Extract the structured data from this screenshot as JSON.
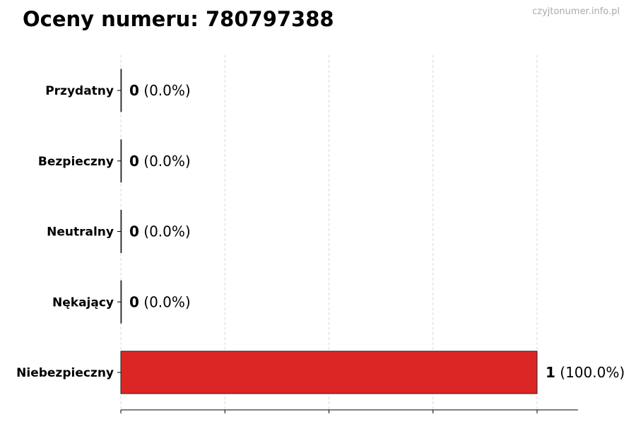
{
  "title": "Oceny numeru: 780797388",
  "watermark": "czyjtonumer.info.pl",
  "chart_data": {
    "type": "bar",
    "orientation": "horizontal",
    "title": "Oceny numeru: 780797388",
    "categories": [
      "Przydatny",
      "Bezpieczny",
      "Neutralny",
      "Nękający",
      "Niebezpieczny"
    ],
    "values": [
      0,
      0,
      0,
      0,
      1
    ],
    "data_labels": [
      {
        "count": "0",
        "pct": "(0.0%)"
      },
      {
        "count": "0",
        "pct": "(0.0%)"
      },
      {
        "count": "0",
        "pct": "(0.0%)"
      },
      {
        "count": "0",
        "pct": "(0.0%)"
      },
      {
        "count": "1",
        "pct": "(100.0%)"
      }
    ],
    "colors": [
      "#dc2626",
      "#dc2626",
      "#dc2626",
      "#dc2626",
      "#dc2626"
    ],
    "xlim": [
      0,
      1.1
    ],
    "xticks": [
      0,
      0.25,
      0.5,
      0.75,
      1
    ],
    "xtick_labels_shown": false,
    "grid": "x-dashed",
    "xlabel": "",
    "ylabel": ""
  }
}
